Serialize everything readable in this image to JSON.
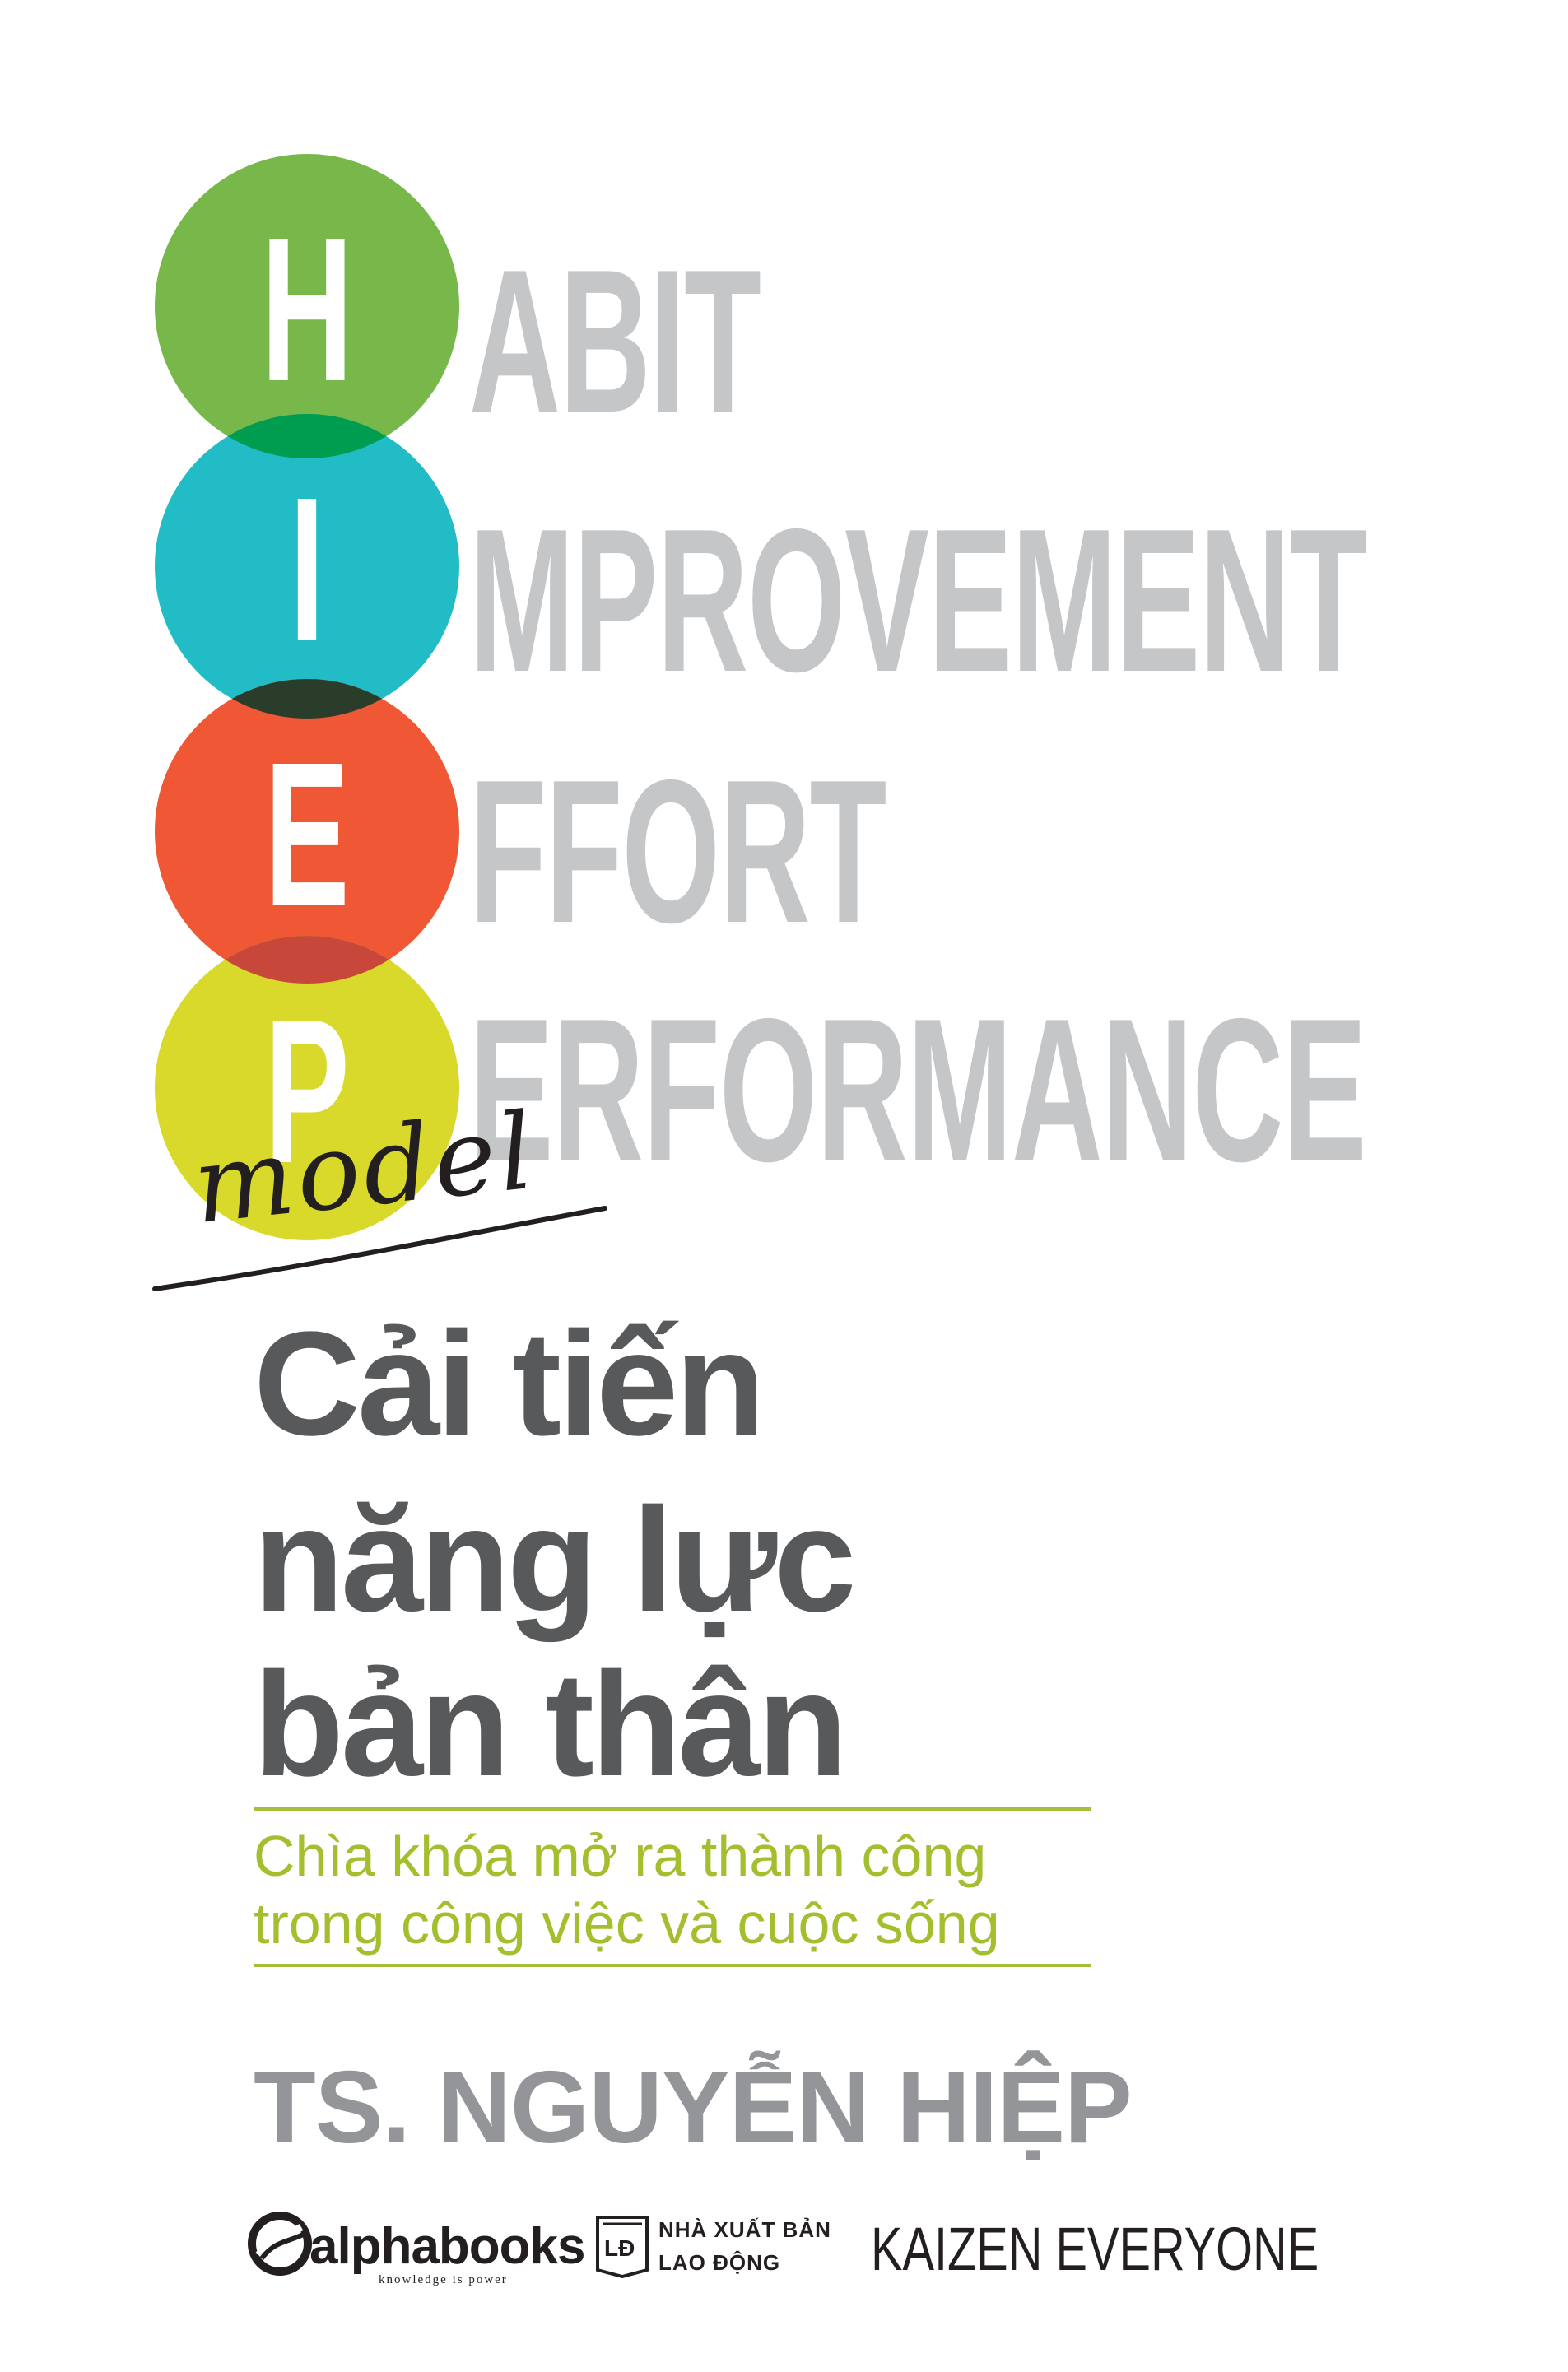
{
  "acronym": {
    "circles": [
      {
        "letter": "H",
        "color": "#78b84a"
      },
      {
        "letter": "I",
        "color": "#21bcc6"
      },
      {
        "letter": "E",
        "color": "#ef5735"
      },
      {
        "letter": "P",
        "color": "#d8d92a"
      }
    ],
    "overlap_colors": [
      "#009c4f",
      "#2a3d2b",
      "#c7473a"
    ],
    "words": [
      "ABIT",
      "MPROVEMENT",
      "FFORT",
      "ERFORMANCE"
    ],
    "word_color": "#c5c6c8",
    "model_word": "model"
  },
  "title": {
    "lines": [
      "Cải tiến",
      "năng lực",
      "bản thân"
    ],
    "color": "#58595b"
  },
  "subtitle": {
    "lines": [
      "Chìa khóa mở ra thành công",
      "trong công việc và cuộc sống"
    ],
    "color": "#a4bf2e"
  },
  "author": "TS. NGUYỄN HIỆP",
  "publishers": {
    "alphabooks": {
      "name": "alphabooks",
      "tagline": "knowledge is power",
      "icon": "alphabooks-swirl-icon"
    },
    "nxb": {
      "line1": "NHÀ XUẤT BẢN",
      "line2": "LAO ĐỘNG",
      "badge": "LĐ",
      "icon": "book-badge-icon"
    },
    "series": "KAIZEN EVERYONE"
  }
}
